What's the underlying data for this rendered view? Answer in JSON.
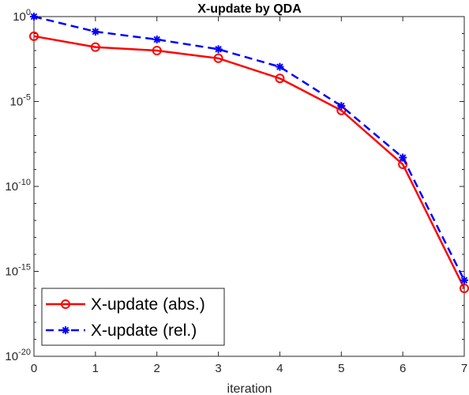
{
  "chart_data": {
    "type": "line",
    "title": "X-update by QDA",
    "xlabel": "iteration",
    "ylabel": "",
    "xlim": [
      0,
      7
    ],
    "ylim": [
      1e-20,
      1
    ],
    "yscale": "log",
    "x_ticks": [
      "0",
      "1",
      "2",
      "3",
      "4",
      "5",
      "6",
      "7"
    ],
    "y_ticks": [
      {
        "base": "10",
        "exp": "0",
        "value": 1
      },
      {
        "base": "10",
        "exp": "-5",
        "value": 1e-05
      },
      {
        "base": "10",
        "exp": "-10",
        "value": 1e-10
      },
      {
        "base": "10",
        "exp": "-15",
        "value": 1e-15
      },
      {
        "base": "10",
        "exp": "-20",
        "value": 1e-20
      }
    ],
    "grid": false,
    "legend": "bottom-left",
    "x": [
      0,
      1,
      2,
      3,
      4,
      5,
      6,
      7
    ],
    "series": [
      {
        "name": "X-update (abs.)",
        "color": "#ff0000",
        "line": "solid",
        "marker": "circle",
        "values": [
          0.07,
          0.016,
          0.01,
          0.0035,
          0.00023,
          3e-06,
          2e-09,
          1e-16
        ]
      },
      {
        "name": "X-update (rel.)",
        "color": "#0000ff",
        "line": "dashed",
        "marker": "asterisk",
        "values": [
          1.0,
          0.13,
          0.045,
          0.012,
          0.0011,
          5.5e-06,
          5e-09,
          3e-16
        ]
      }
    ]
  }
}
